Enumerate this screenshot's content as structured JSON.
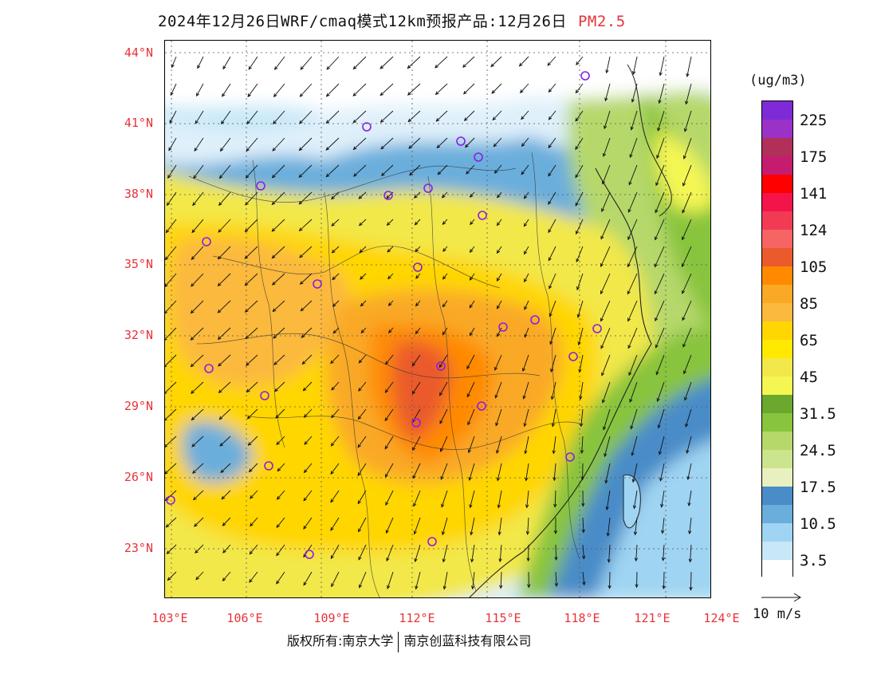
{
  "title": {
    "main": "2024年12月26日WRF/cmaq模式12km预报产品:12月26日",
    "pollutant": "PM2.5"
  },
  "lat_labels": [
    "44°N",
    "41°N",
    "38°N",
    "35°N",
    "32°N",
    "29°N",
    "26°N",
    "23°N"
  ],
  "lon_labels": [
    "103°E",
    "106°E",
    "109°E",
    "112°E",
    "115°E",
    "118°E",
    "121°E",
    "124°E"
  ],
  "colorbar": {
    "unit": "(ug/m3)",
    "colors": [
      "#7e2ad6",
      "#9a32c8",
      "#b0305a",
      "#c51c70",
      "#ff0000",
      "#f5144a",
      "#f23a55",
      "#f76464",
      "#ea5a2a",
      "#ff8a00",
      "#f9a926",
      "#fbb93e",
      "#ffd600",
      "#ffe900",
      "#f2e84a",
      "#f4f652",
      "#6aa82e",
      "#88c43c",
      "#b6d86a",
      "#cde48e",
      "#e8f0c0",
      "#4a8cc8",
      "#6aaedc",
      "#9fd4f2",
      "#c8e8f8",
      "#ffffff"
    ],
    "labels": [
      "225",
      "175",
      "141",
      "124",
      "105",
      "85",
      "65",
      "45",
      "31.5",
      "24.5",
      "17.5",
      "10.5",
      "3.5"
    ]
  },
  "wind_key_label": "10 m/s",
  "footer": {
    "left": "版权所有:南京大学",
    "right": "南京创蓝科技有限公司"
  },
  "colors": {
    "label_red": "#e8323a",
    "site_marker": "#8a1fe0"
  }
}
